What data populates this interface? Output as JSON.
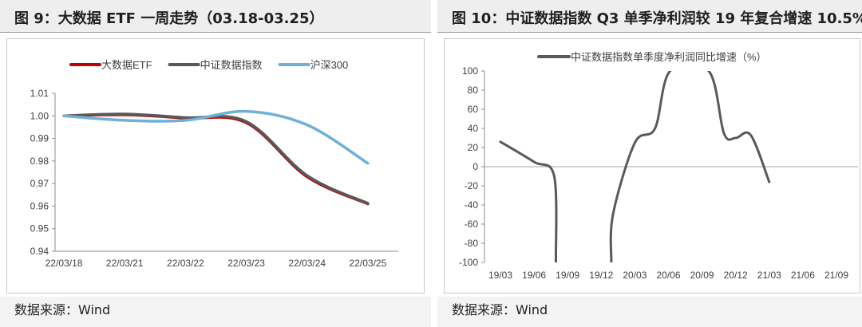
{
  "charts": [
    {
      "title": "图 9：大数据 ETF 一周走势（03.18-03.25）",
      "source": "数据来源：Wind",
      "chart_data": {
        "type": "line",
        "title": "图 9：大数据 ETF 一周走势（03.18-03.25）",
        "categories": [
          "22/03/18",
          "22/03/21",
          "22/03/22",
          "22/03/23",
          "22/03/24",
          "22/03/25"
        ],
        "ylim": [
          0.94,
          1.01
        ],
        "yticks": [
          "1.01",
          "1.00",
          "0.99",
          "0.98",
          "0.97",
          "0.96",
          "0.95",
          "0.94"
        ],
        "xlabel": "",
        "ylabel": "",
        "legend_position": "top",
        "series": [
          {
            "name": "大数据ETF",
            "color": "#c00000",
            "values": [
              1.0,
              1.0005,
              0.999,
              0.997,
              0.973,
              0.961
            ]
          },
          {
            "name": "中证数据指数",
            "color": "#595959",
            "values": [
              1.0,
              1.0008,
              0.9992,
              0.9975,
              0.9735,
              0.9612
            ]
          },
          {
            "name": "沪深300",
            "color": "#6fb0d9",
            "values": [
              1.0,
              0.998,
              0.998,
              1.002,
              0.996,
              0.979
            ]
          }
        ]
      }
    },
    {
      "title": "图 10：中证数据指数 Q3 单季净利润较 19 年复合增速 10.5%",
      "source": "数据来源：Wind",
      "chart_data": {
        "type": "line",
        "title": "图 10：中证数据指数 Q3 单季净利润较 19 年复合增速 10.5%",
        "categories": [
          "19/03",
          "19/06",
          "19/09",
          "19/12",
          "20/03",
          "20/06",
          "20/09",
          "20/12",
          "21/03",
          "21/06",
          "21/09"
        ],
        "ylim": [
          -100,
          100
        ],
        "yticks": [
          "100",
          "80",
          "60",
          "40",
          "20",
          "0",
          "-20",
          "-40",
          "-60",
          "-80",
          "-100"
        ],
        "xlabel": "",
        "ylabel": "",
        "legend_position": "top",
        "series": [
          {
            "name": "中证数据指数单季度净利润同比增速（%）",
            "color": "#595959",
            "points": [
              [
                0,
                26
              ],
              [
                1,
                5
              ],
              [
                1.6,
                -10
              ],
              [
                1.65,
                -100
              ],
              [
                3.3,
                -100
              ],
              [
                3.35,
                -50
              ],
              [
                4,
                25
              ],
              [
                4.6,
                40
              ],
              [
                5.05,
                100
              ],
              [
                6.2,
                100
              ],
              [
                6.65,
                35
              ],
              [
                7.0,
                30
              ],
              [
                7.45,
                33
              ],
              [
                8.0,
                -16
              ]
            ]
          }
        ]
      }
    }
  ]
}
